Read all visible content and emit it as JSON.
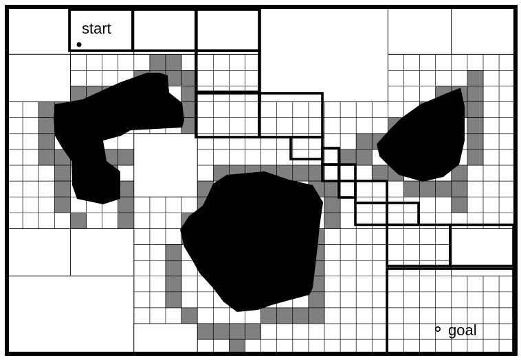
{
  "labels": {
    "start": "start",
    "goal": "goal"
  },
  "markers": {
    "start": "start-marker-dot",
    "goal": "goal-marker-circle"
  },
  "colors": {
    "background": "#ffffff",
    "obstacle": "#000000",
    "mixed_cell": "#808080",
    "cell_border": "#000000"
  }
}
